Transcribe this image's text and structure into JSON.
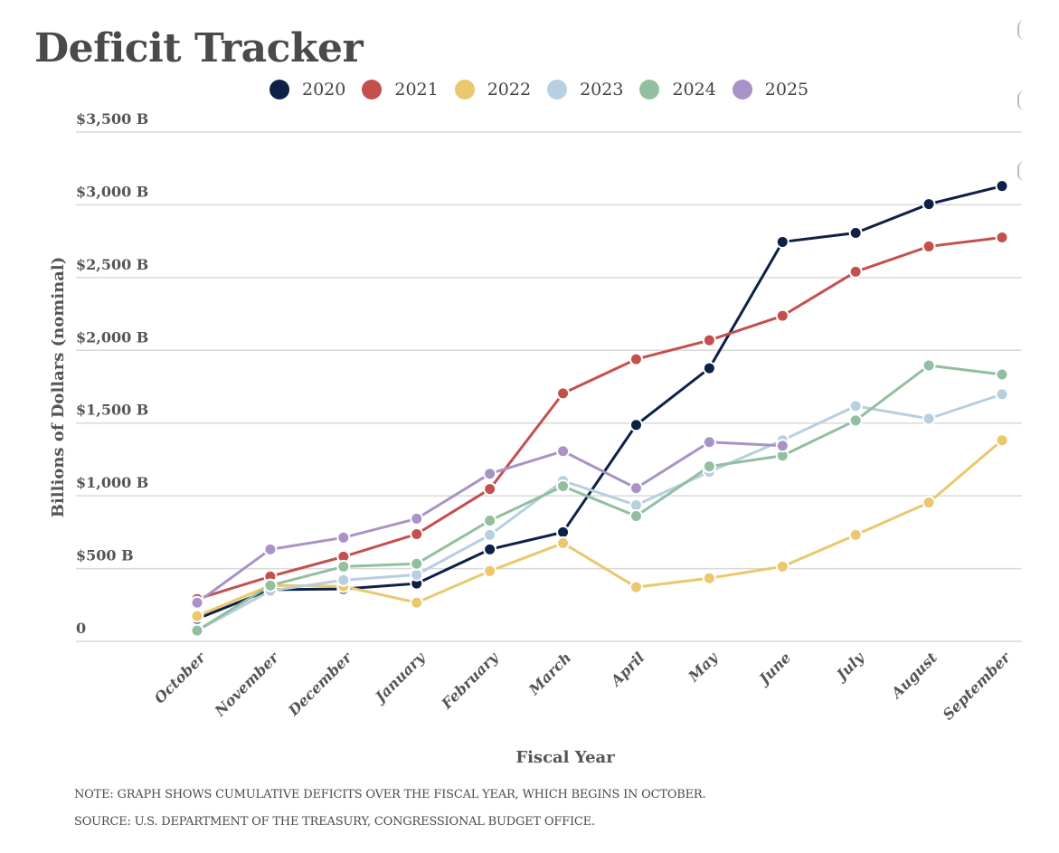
{
  "title": "Deficit Tracker",
  "chart_data": {
    "type": "line",
    "title": "Deficit Tracker",
    "xlabel": "Fiscal Year",
    "ylabel": "Billions of Dollars (nominal)",
    "categories": [
      "October",
      "November",
      "December",
      "January",
      "February",
      "March",
      "April",
      "May",
      "June",
      "July",
      "August",
      "September"
    ],
    "ylim": [
      0,
      3500
    ],
    "yticks": [
      0,
      500,
      1000,
      1500,
      2000,
      2500,
      3000,
      3500
    ],
    "ytick_labels": [
      "0",
      "$500 B",
      "$1,000 B",
      "$1,500 B",
      "$2,000 B",
      "$2,500 B",
      "$3,000 B",
      "$3,500 B"
    ],
    "grid": true,
    "legend_position": "top-center",
    "series": [
      {
        "name": "2020",
        "color": "#0d2147",
        "values": [
          155,
          355,
          360,
          397,
          632,
          750,
          1487,
          1877,
          2745,
          2807,
          3005,
          3129
        ]
      },
      {
        "name": "2021",
        "color": "#c4504e",
        "values": [
          291,
          446,
          582,
          737,
          1047,
          1704,
          1939,
          2069,
          2237,
          2540,
          2714,
          2776
        ]
      },
      {
        "name": "2022",
        "color": "#ebc76e",
        "values": [
          173,
          385,
          378,
          266,
          483,
          675,
          372,
          434,
          514,
          731,
          954,
          1382
        ]
      },
      {
        "name": "2023",
        "color": "#b7cfe0",
        "values": [
          74,
          347,
          421,
          458,
          731,
          1103,
          936,
          1165,
          1382,
          1617,
          1530,
          1698
        ]
      },
      {
        "name": "2024",
        "color": "#92bfa0",
        "values": [
          74,
          384,
          514,
          533,
          830,
          1066,
          861,
          1202,
          1276,
          1518,
          1896,
          1834
        ]
      },
      {
        "name": "2025",
        "color": "#a993c6",
        "values": [
          266,
          632,
          713,
          843,
          1152,
          1307,
          1053,
          1369,
          1344,
          null,
          null,
          null
        ]
      }
    ]
  },
  "notes": {
    "note": "NOTE: GRAPH SHOWS CUMULATIVE DEFICITS OVER THE FISCAL YEAR, WHICH BEGINS IN OCTOBER.",
    "source": "SOURCE: U.S. DEPARTMENT OF THE TREASURY, CONGRESSIONAL BUDGET OFFICE."
  }
}
